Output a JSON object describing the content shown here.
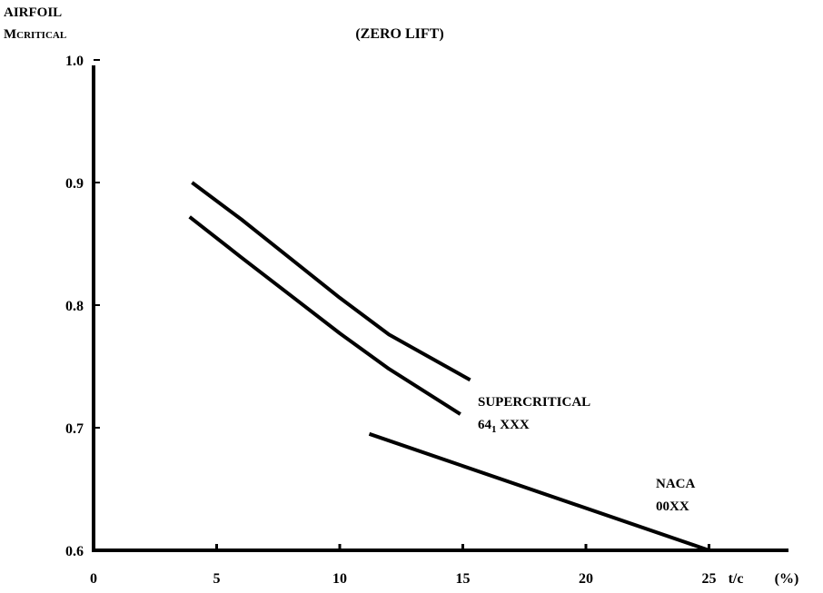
{
  "chart_data": {
    "type": "line",
    "title": "(ZERO LIFT)",
    "ylabel_line1": "AIRFOIL",
    "ylabel_main": "M",
    "ylabel_sub": "CRITICAL",
    "xlabel": "t/c",
    "xunit": "(%)",
    "xlim": [
      0,
      28
    ],
    "ylim": [
      0.6,
      1.02
    ],
    "xticks": [
      {
        "value": 0,
        "label": "0"
      },
      {
        "value": 5,
        "label": "5"
      },
      {
        "value": 10,
        "label": "10"
      },
      {
        "value": 15,
        "label": "15"
      },
      {
        "value": 20,
        "label": "20"
      },
      {
        "value": 25,
        "label": "25"
      }
    ],
    "yticks": [
      {
        "value": 0.6,
        "label": "0.6"
      },
      {
        "value": 0.7,
        "label": "0.7"
      },
      {
        "value": 0.8,
        "label": "0.8"
      },
      {
        "value": 0.9,
        "label": "0.9"
      },
      {
        "value": 1.0,
        "label": "1.0"
      }
    ],
    "grid": false,
    "series": [
      {
        "id": "supercritical",
        "name": "SUPERCRITICAL",
        "color": "#000000",
        "x": [
          4,
          6,
          8,
          10,
          12,
          15.3
        ],
        "y": [
          0.9,
          0.87,
          0.838,
          0.806,
          0.776,
          0.739
        ]
      },
      {
        "id": "naca-64",
        "name_main": "64",
        "name_sub": "1",
        "name_rest": " XXX",
        "color": "#000000",
        "x": [
          3.9,
          6,
          8,
          10,
          12,
          14.9
        ],
        "y": [
          0.872,
          0.839,
          0.808,
          0.777,
          0.748,
          0.711
        ]
      },
      {
        "id": "naca-00xx",
        "name_line1": "NACA",
        "name_line2": "00XX",
        "color": "#000000",
        "x": [
          11.2,
          25
        ],
        "y": [
          0.695,
          0.6
        ]
      }
    ]
  }
}
